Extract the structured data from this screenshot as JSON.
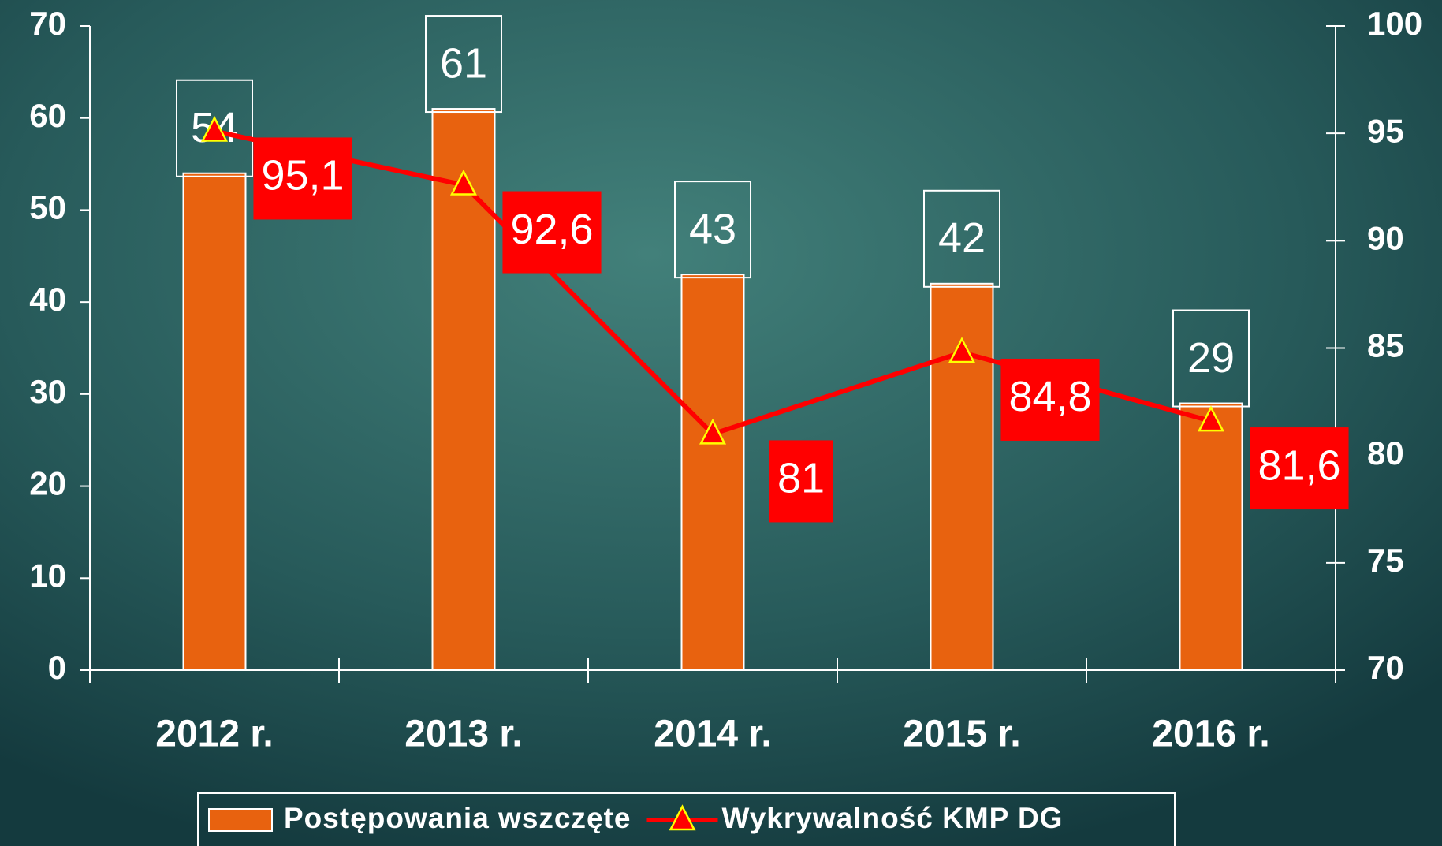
{
  "chart_data": {
    "type": "bar",
    "categories": [
      "2012 r.",
      "2013 r.",
      "2014 r.",
      "2015 r.",
      "2016 r."
    ],
    "series": [
      {
        "name": "Postępowania wszczęte",
        "color": "#e8620f",
        "type": "bar",
        "values": [
          54,
          61,
          43,
          42,
          29
        ]
      },
      {
        "name": "Wykrywalność KMP DG",
        "color": "#ff0000",
        "type": "line",
        "axis": "y2",
        "marker": "triangle",
        "marker_color": "#ffff00",
        "values": [
          95.1,
          92.6,
          81,
          84.8,
          81.6
        ],
        "value_labels": [
          "95,1",
          "92,6",
          "81",
          "84,8",
          "81,6"
        ]
      }
    ],
    "ylim": [
      0,
      70
    ],
    "yticks": [
      0,
      10,
      20,
      30,
      40,
      50,
      60,
      70
    ],
    "y2lim": [
      70,
      100
    ],
    "y2ticks": [
      70,
      75,
      80,
      85,
      90,
      95,
      100
    ],
    "legend": "bottom"
  }
}
